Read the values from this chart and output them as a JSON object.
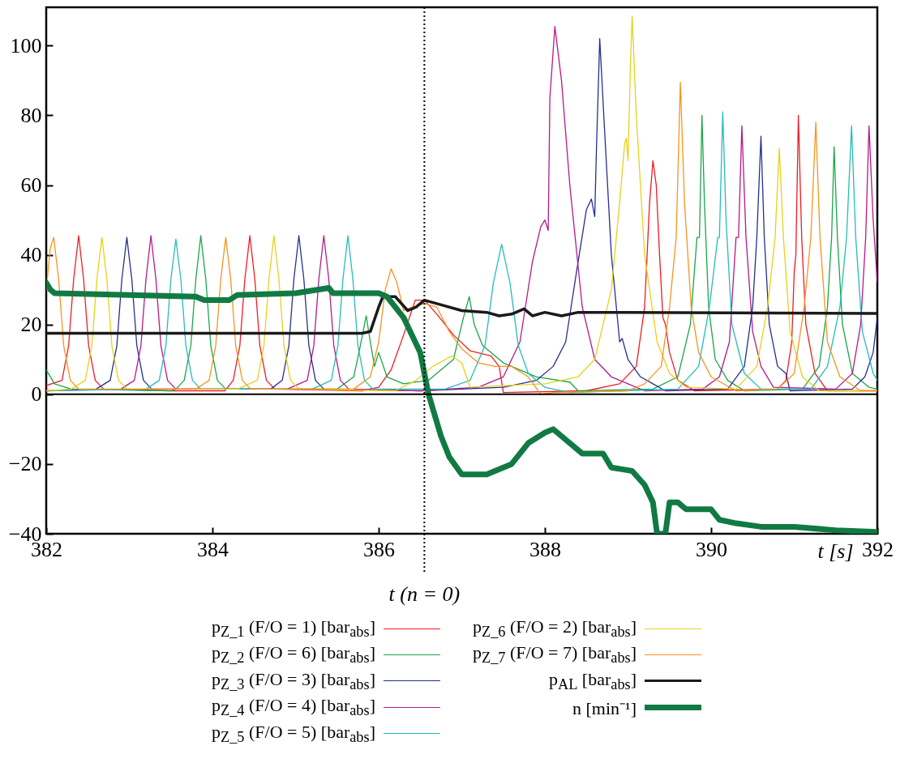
{
  "chart_data": {
    "type": "line",
    "xlabel": "t [s]",
    "xlim": [
      382,
      392
    ],
    "xticks": [
      382,
      384,
      386,
      388,
      390,
      392
    ],
    "ylim": [
      -40,
      111
    ],
    "yticks": [
      -40,
      -20,
      0,
      20,
      40,
      60,
      80,
      100
    ],
    "grid": false,
    "legend": "bottom",
    "marker": "none",
    "line_style": "solid",
    "annotations": [
      "t (n = 0)"
    ],
    "ref_lines": [
      {
        "axis": "x",
        "value": 386.55,
        "label": null,
        "color": "#000000",
        "line_style": "dotted"
      },
      {
        "axis": "y",
        "value": 0,
        "label": null,
        "color": "#000000",
        "line_style": "solid"
      }
    ],
    "series": [
      {
        "name": "p$_{Z_1}$ (F/O = 1) [bar$_{abs}$]",
        "color": "#ee1c25",
        "x": [
          382.0,
          382.19,
          382.27,
          382.33,
          382.39,
          382.45,
          382.51,
          382.59,
          382.69,
          383.5,
          384.15,
          384.25,
          384.33,
          384.39,
          384.45,
          384.51,
          384.57,
          384.65,
          384.75,
          385.8,
          386.0,
          386.15,
          386.3,
          386.44,
          386.55,
          386.7,
          386.9,
          387.1,
          387.35,
          387.45,
          387.5,
          388.5,
          388.9,
          389.1,
          389.2,
          389.26,
          389.3,
          389.34,
          389.38,
          389.42,
          389.45,
          389.5,
          389.6,
          389.8,
          390.8,
          390.9,
          390.97,
          391.0,
          391.02,
          391.05,
          391.09,
          391.14,
          391.25,
          391.4,
          392.0
        ],
        "values": [
          2.5,
          4,
          14,
          33,
          45.5,
          33,
          14,
          4,
          1.5,
          1,
          1,
          4,
          14,
          33,
          45.5,
          33,
          14,
          4,
          1.5,
          1,
          2,
          7,
          17,
          27,
          27,
          23,
          17,
          12.5,
          11,
          8,
          0.5,
          1,
          3,
          8,
          25,
          55,
          67,
          60,
          40,
          22,
          20,
          12,
          4,
          1,
          1.5,
          4,
          15,
          35,
          40,
          80,
          45,
          20,
          6,
          1,
          1
        ]
      },
      {
        "name": "p$_{Z_2}$ (F/O = 6) [bar$_{abs}$]",
        "color": "#1aa64a",
        "x": [
          382.0,
          382.1,
          382.3,
          383.5,
          383.56,
          383.66,
          383.74,
          383.8,
          383.86,
          383.92,
          383.98,
          384.06,
          384.16,
          385.5,
          385.7,
          385.78,
          385.85,
          385.9,
          385.95,
          386.0,
          386.1,
          386.3,
          386.6,
          386.9,
          387.02,
          387.09,
          387.15,
          387.25,
          387.5,
          387.9,
          388.3,
          388.4,
          389.3,
          389.6,
          389.75,
          389.83,
          389.86,
          389.89,
          389.92,
          389.97,
          390.05,
          390.2,
          390.4,
          391.1,
          391.3,
          391.4,
          391.45,
          391.48,
          391.52,
          391.58,
          391.7,
          391.9,
          392.0
        ],
        "values": [
          7,
          3,
          1.5,
          1,
          1.5,
          4,
          14,
          33,
          45.5,
          33,
          14,
          4,
          1.5,
          1.5,
          5,
          14,
          22.5,
          15,
          8,
          12,
          5,
          3,
          4,
          10,
          22,
          28,
          20,
          14,
          9,
          5,
          3.5,
          1,
          1.5,
          5,
          20,
          45,
          45,
          80,
          55,
          25,
          10,
          4,
          1,
          1.5,
          8,
          25,
          45,
          71,
          45,
          20,
          6,
          2,
          1.5
        ]
      },
      {
        "name": "p$_{Z_3}$ (F/O = 3) [bar$_{abs}$]",
        "color": "#262f8f",
        "x": [
          382.0,
          382.6,
          382.77,
          382.85,
          382.91,
          382.97,
          383.03,
          383.09,
          383.17,
          383.27,
          384.7,
          384.84,
          384.92,
          384.98,
          385.04,
          385.1,
          385.16,
          385.24,
          385.34,
          386.5,
          387.5,
          387.9,
          388.1,
          388.25,
          388.38,
          388.5,
          388.56,
          388.6,
          388.62,
          388.66,
          388.72,
          388.8,
          388.9,
          388.93,
          389.0,
          389.15,
          389.3,
          389.45,
          390.2,
          390.4,
          390.5,
          390.55,
          390.6,
          390.64,
          390.7,
          390.8,
          390.9,
          390.95,
          391.7,
          391.85,
          391.95,
          392.0
        ],
        "values": [
          1,
          1.5,
          4,
          14,
          33,
          45,
          33,
          14,
          4,
          1.5,
          1.5,
          4,
          14,
          33,
          45.5,
          33,
          14,
          4,
          1.5,
          1,
          2,
          4,
          8,
          15,
          35,
          53,
          56,
          51,
          70,
          102,
          75,
          40,
          15,
          16,
          10,
          5,
          3,
          1,
          1.5,
          8,
          25,
          45,
          74,
          45,
          20,
          8,
          6,
          1,
          1.5,
          5,
          12,
          22
        ]
      },
      {
        "name": "p$_{Z_4}$ (F/O = 4) [bar$_{abs}$]",
        "color": "#b5198c",
        "x": [
          382.0,
          382.9,
          383.06,
          383.14,
          383.2,
          383.26,
          383.32,
          383.38,
          383.46,
          383.56,
          384.9,
          385.14,
          385.22,
          385.28,
          385.34,
          385.4,
          385.46,
          385.54,
          385.64,
          386.5,
          387.2,
          387.5,
          387.7,
          387.85,
          387.95,
          388.0,
          388.04,
          388.06,
          388.12,
          388.2,
          388.3,
          388.45,
          388.6,
          388.8,
          389.0,
          389.2,
          389.9,
          390.1,
          390.22,
          390.3,
          390.33,
          390.37,
          390.42,
          390.5,
          390.6,
          390.75,
          391.5,
          391.7,
          391.8,
          391.86,
          391.9,
          391.95,
          392.0
        ],
        "values": [
          1,
          1.5,
          4,
          14,
          33,
          45.5,
          33,
          14,
          4,
          1.5,
          1.5,
          4,
          14,
          33,
          45.5,
          33,
          14,
          4,
          1.5,
          1,
          2,
          5,
          15,
          38,
          48,
          50,
          47,
          85,
          105.5,
          90,
          60,
          25,
          10,
          5,
          3,
          1,
          1.5,
          5,
          15,
          45,
          45,
          77,
          45,
          18,
          8,
          2,
          1.5,
          6,
          20,
          45,
          77,
          50,
          32
        ]
      },
      {
        "name": "p$_{Z_5}$ (F/O = 5) [bar$_{abs}$]",
        "color": "#25bcbd",
        "x": [
          382.0,
          383.2,
          383.36,
          383.44,
          383.5,
          383.56,
          383.62,
          383.68,
          383.76,
          383.86,
          385.2,
          385.43,
          385.51,
          385.57,
          385.63,
          385.69,
          385.75,
          385.83,
          385.93,
          386.8,
          387.1,
          387.28,
          387.38,
          387.48,
          387.58,
          387.68,
          387.8,
          388.0,
          388.3,
          389.6,
          389.85,
          389.98,
          390.08,
          390.1,
          390.14,
          390.18,
          390.25,
          390.4,
          390.6,
          391.2,
          391.4,
          391.55,
          391.63,
          391.69,
          391.74,
          391.82,
          391.95,
          392.0
        ],
        "values": [
          1,
          1.5,
          4,
          14,
          33,
          44.5,
          33,
          14,
          4,
          1.5,
          1.5,
          4,
          14,
          33,
          45.5,
          33,
          14,
          4,
          1.5,
          1.5,
          4,
          14,
          32,
          43,
          32,
          14,
          6,
          2,
          0.5,
          1.5,
          8,
          25,
          45,
          45,
          81,
          50,
          20,
          6,
          1.5,
          1.5,
          8,
          25,
          45,
          77,
          45,
          18,
          6,
          4
        ]
      },
      {
        "name": "p$_{Z_6}$ (F/O = 2) [bar$_{abs}$]",
        "color": "#e6d21a",
        "x": [
          382.0,
          382.3,
          382.47,
          382.55,
          382.61,
          382.67,
          382.73,
          382.79,
          382.87,
          382.97,
          384.3,
          384.54,
          384.62,
          384.68,
          384.74,
          384.8,
          384.86,
          384.94,
          385.04,
          386.2,
          386.45,
          386.65,
          386.88,
          387.0,
          387.1,
          387.5,
          388.0,
          388.4,
          388.6,
          388.8,
          388.9,
          388.96,
          388.98,
          389.0,
          389.03,
          389.05,
          389.1,
          389.2,
          389.35,
          389.5,
          389.7,
          390.3,
          390.55,
          390.68,
          390.77,
          390.82,
          390.87,
          390.95,
          391.1,
          391.3,
          392.0
        ],
        "values": [
          1,
          1.5,
          4,
          14,
          33,
          45,
          33,
          14,
          4,
          1.5,
          1.5,
          4,
          14,
          33,
          45.5,
          33,
          14,
          4,
          1.5,
          1,
          4,
          8,
          11,
          9,
          2,
          2.5,
          3,
          5,
          10,
          30,
          55,
          72,
          73.5,
          67,
          95,
          108.5,
          80,
          40,
          15,
          6,
          2,
          1.5,
          8,
          25,
          45,
          70.5,
          45,
          18,
          5,
          1,
          1
        ]
      },
      {
        "name": "p$_{Z_7}$ (F/O = 7) [bar$_{abs}$]",
        "color": "#f7941d",
        "x": [
          382.0,
          382.05,
          382.09,
          382.15,
          382.21,
          382.29,
          382.39,
          383.8,
          383.96,
          384.04,
          384.1,
          384.16,
          384.22,
          384.28,
          384.36,
          384.46,
          385.7,
          385.9,
          386.0,
          386.08,
          386.15,
          386.22,
          386.3,
          386.4,
          386.55,
          386.7,
          386.85,
          387.0,
          387.2,
          387.4,
          387.6,
          387.8,
          387.95,
          388.1,
          389.0,
          389.2,
          389.4,
          389.5,
          389.58,
          389.63,
          389.68,
          389.76,
          389.85,
          390.0,
          390.3,
          390.8,
          391.0,
          391.12,
          391.2,
          391.26,
          391.31,
          391.4,
          391.55,
          391.8,
          392.0
        ],
        "values": [
          30,
          42,
          45,
          33,
          14,
          4,
          1.5,
          1.5,
          4,
          14,
          33,
          45,
          33,
          14,
          4,
          1.5,
          1.5,
          5,
          15,
          30,
          36,
          32,
          24,
          25,
          26,
          25,
          18,
          13,
          9,
          8,
          8,
          5,
          0,
          0.5,
          1,
          3,
          8,
          25,
          45,
          89.5,
          55,
          25,
          12,
          5,
          1,
          1.5,
          6,
          25,
          45,
          78,
          45,
          15,
          5,
          1,
          1
        ]
      },
      {
        "name": "p$_{AL}$ [bar$_{abs}$]",
        "color": "#1a1a1a",
        "x": [
          382.0,
          385.8,
          385.9,
          386.0,
          386.05,
          386.2,
          386.35,
          386.45,
          386.55,
          386.7,
          387.0,
          387.3,
          387.45,
          387.6,
          387.75,
          387.85,
          388.0,
          388.2,
          388.4,
          389.0,
          392.0
        ],
        "values": [
          17.5,
          17.5,
          18,
          25,
          28,
          28,
          24,
          25,
          27,
          26,
          24,
          23.5,
          22.5,
          23,
          24.5,
          22.5,
          23.5,
          22.5,
          23.5,
          23.5,
          23.2
        ]
      },
      {
        "name": "n [min⁻¹]",
        "color": "#117a43",
        "x": [
          382.0,
          382.05,
          382.1,
          383.0,
          383.8,
          383.9,
          384.2,
          384.3,
          385.0,
          385.4,
          385.45,
          386.0,
          386.1,
          386.3,
          386.5,
          386.6,
          386.75,
          386.85,
          387.0,
          387.3,
          387.6,
          387.8,
          388.0,
          388.1,
          388.3,
          388.45,
          388.7,
          388.8,
          389.05,
          389.2,
          389.3,
          389.35,
          389.45,
          389.5,
          389.6,
          389.7,
          390.0,
          390.1,
          390.3,
          390.6,
          391.0,
          391.5,
          392.0
        ],
        "values": [
          32,
          30,
          29,
          28.5,
          28,
          27,
          27,
          28.5,
          29,
          30.5,
          29,
          29,
          28,
          22,
          12,
          0,
          -12,
          -18,
          -23,
          -23,
          -20,
          -14,
          -11,
          -10,
          -14,
          -17,
          -17,
          -21,
          -22,
          -26,
          -31,
          -40,
          -40,
          -31,
          -31,
          -33,
          -33,
          -36,
          -37,
          -38,
          -38,
          -39,
          -39.5
        ]
      }
    ]
  }
}
